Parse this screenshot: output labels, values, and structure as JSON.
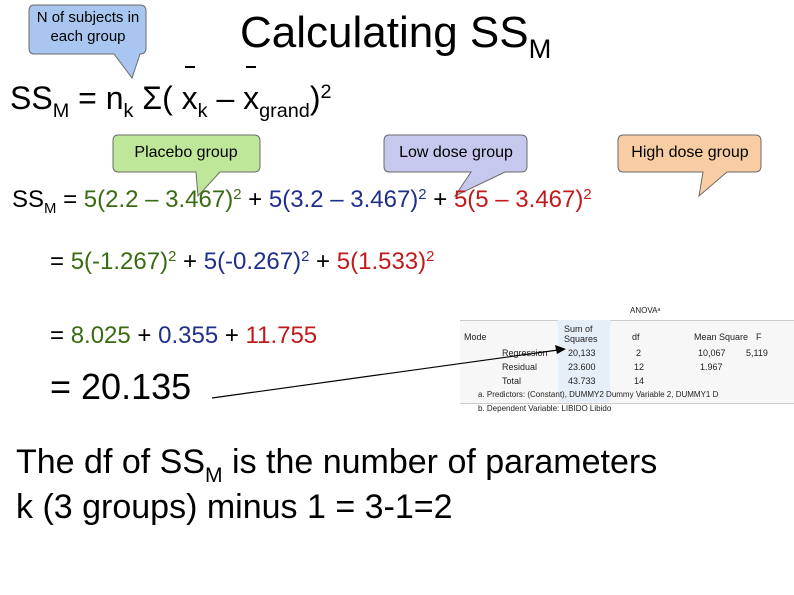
{
  "title": {
    "main": "Calculating SS",
    "sub": "M"
  },
  "callouts": {
    "n_subjects": "N of subjects in each group",
    "placebo": "Placebo group",
    "low": "Low dose group",
    "high": "High dose group"
  },
  "formula": {
    "ss": "SS",
    "ss_sub": "M",
    "eq": " = n",
    "n_sub": "k",
    "sigma": " Σ( ",
    "x1": "x",
    "x1_sub": "k",
    "minus": " – ",
    "x2": "x",
    "x2_sub": "grand",
    "close": ")",
    "exp": "2"
  },
  "line1": {
    "lhs": "SS",
    "lhs_sub": "M",
    "eq": " = ",
    "t1": "5(2.2 – 3.467)",
    "t2": "5(3.2 – 3.467)",
    "t3": "5(5 – 3.467)",
    "exp": "2",
    "plus": " + "
  },
  "line2": {
    "eq": "= ",
    "t1": "5(-1.267)",
    "t2": "5(-0.267)",
    "t3": "5(1.533)",
    "exp": "2",
    "plus": " + "
  },
  "line3": {
    "eq": "= ",
    "t1": "8.025",
    "t2": "0.355",
    "t3": "11.755",
    "plus": " + "
  },
  "line4": {
    "text": "= 20.135"
  },
  "paragraph": {
    "part1": "The df of SS",
    "sub": "M",
    "part2": " is the number of parameters",
    "line2": "k (3 groups) minus 1 = 3-1=2"
  },
  "anova": {
    "title": "ANOVAᵃ",
    "headers": {
      "model": "Mode",
      "ss": "Sum of Squares",
      "df": "df",
      "ms": "Mean Square",
      "f": "F"
    },
    "rows": [
      {
        "label": "Regression",
        "ss": "20,133",
        "df": "2",
        "ms": "10,067",
        "f": "5,119"
      },
      {
        "label": "Residual",
        "ss": "23.600",
        "df": "12",
        "ms": "1.967",
        "f": ""
      },
      {
        "label": "Total",
        "ss": "43.733",
        "df": "14",
        "ms": "",
        "f": ""
      }
    ],
    "footnote_a": "a. Predictors: (Constant), DUMMY2  Dummy Variable 2, DUMMY1  D",
    "footnote_b": "b. Dependent Variable: LIBIDO  Libido"
  },
  "colors": {
    "placebo": "#3a6b12",
    "low": "#1f2f8c",
    "high": "#c21a1a"
  }
}
